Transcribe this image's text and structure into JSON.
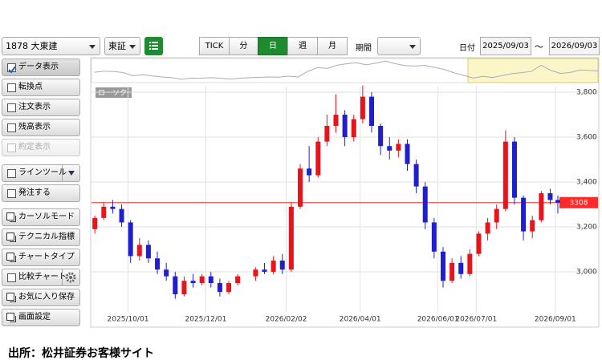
{
  "toolbar": {
    "stock": "1878 大東建",
    "market": "東証",
    "tabs": [
      {
        "label": "TICK",
        "active": false
      },
      {
        "label": "分",
        "active": false
      },
      {
        "label": "日",
        "active": true
      },
      {
        "label": "週",
        "active": false
      },
      {
        "label": "月",
        "active": false
      }
    ],
    "period_label": "期間",
    "date_label": "日付",
    "date_from": "2025/09/03",
    "date_sep": "～",
    "date_to": "2026/09/03"
  },
  "sidebar": [
    {
      "label": "データ表示",
      "kind": "check",
      "checked": true,
      "disabled": false
    },
    {
      "label": "転換点",
      "kind": "check",
      "checked": false,
      "disabled": false
    },
    {
      "label": "注文表示",
      "kind": "check",
      "checked": false,
      "disabled": false
    },
    {
      "label": "残高表示",
      "kind": "check",
      "checked": false,
      "disabled": false
    },
    {
      "label": "約定表示",
      "kind": "check",
      "checked": false,
      "disabled": true
    },
    {
      "label": "ラインツール",
      "kind": "check",
      "checked": false,
      "disabled": false
    },
    {
      "label": "発注する",
      "kind": "check",
      "checked": false,
      "disabled": false
    },
    {
      "label": "カーソルモード",
      "kind": "icon",
      "checked": false,
      "disabled": false
    },
    {
      "label": "テクニカル指標",
      "kind": "icon",
      "checked": false,
      "disabled": false
    },
    {
      "label": "チャートタイプ",
      "kind": "icon",
      "checked": false,
      "disabled": false
    },
    {
      "label": "比較チャート",
      "kind": "check",
      "checked": false,
      "disabled": false
    },
    {
      "label": "お気に入り保存",
      "kind": "icon",
      "checked": false,
      "disabled": false
    },
    {
      "label": "画面設定",
      "kind": "icon",
      "checked": false,
      "disabled": false
    }
  ],
  "chart_data": {
    "type": "candlestick",
    "series_label": "ローソク",
    "up_color": "#e8141c",
    "down_color": "#1f1fd0",
    "last_price": 3308,
    "last_price_color": "#ff2a2a",
    "x": [
      "2025/09/05",
      "2025/09/12",
      "2025/09/19",
      "2025/09/26",
      "2025/10/03",
      "2025/10/10",
      "2025/10/17",
      "2025/10/24",
      "2025/10/31",
      "2025/11/07",
      "2025/11/14",
      "2025/11/21",
      "2025/11/28",
      "2025/12/05",
      "2025/12/12",
      "2025/12/19",
      "2025/12/26",
      "2026/01/09",
      "2026/01/16",
      "2026/01/23",
      "2026/01/30",
      "2026/02/06",
      "2026/02/13",
      "2026/02/20",
      "2026/02/27",
      "2026/03/06",
      "2026/03/13",
      "2026/03/20",
      "2026/03/27",
      "2026/04/03",
      "2026/04/10",
      "2026/04/17",
      "2026/04/24",
      "2026/05/01",
      "2026/05/08",
      "2026/05/15",
      "2026/05/22",
      "2026/05/29",
      "2026/06/05",
      "2026/06/12",
      "2026/06/19",
      "2026/06/26",
      "2026/07/03",
      "2026/07/10",
      "2026/07/17",
      "2026/07/24",
      "2026/07/31",
      "2026/08/07",
      "2026/08/14",
      "2026/08/21",
      "2026/08/28",
      "2026/09/03"
    ],
    "open": [
      3190,
      3240,
      3290,
      3280,
      3220,
      3070,
      3120,
      3060,
      3010,
      2980,
      2900,
      2960,
      2950,
      2980,
      2950,
      2910,
      2950,
      2980,
      3010,
      3000,
      3050,
      3010,
      3290,
      3460,
      3430,
      3580,
      3650,
      3700,
      3600,
      3680,
      3780,
      3650,
      3560,
      3540,
      3570,
      3480,
      3380,
      3220,
      3090,
      2960,
      3040,
      2990,
      3080,
      3170,
      3220,
      3280,
      3580,
      3330,
      3180,
      3230,
      3350,
      3320
    ],
    "high": [
      3250,
      3310,
      3320,
      3300,
      3230,
      3150,
      3140,
      3090,
      3040,
      3000,
      2980,
      2990,
      2990,
      3000,
      2970,
      2960,
      2990,
      3020,
      3040,
      3070,
      3080,
      3310,
      3480,
      3560,
      3600,
      3700,
      3790,
      3720,
      3700,
      3830,
      3800,
      3660,
      3600,
      3590,
      3590,
      3500,
      3400,
      3240,
      3110,
      3060,
      3070,
      3100,
      3180,
      3240,
      3300,
      3630,
      3600,
      3340,
      3250,
      3360,
      3370,
      3340
    ],
    "low": [
      3170,
      3230,
      3260,
      3200,
      3040,
      3050,
      3040,
      2990,
      2960,
      2880,
      2890,
      2930,
      2940,
      2930,
      2890,
      2900,
      2940,
      2960,
      2990,
      2990,
      2990,
      3000,
      3280,
      3400,
      3420,
      3560,
      3620,
      3560,
      3580,
      3660,
      3620,
      3520,
      3500,
      3510,
      3450,
      3350,
      3190,
      3060,
      2930,
      2950,
      2970,
      2980,
      3070,
      3140,
      3190,
      3270,
      3300,
      3140,
      3150,
      3220,
      3300,
      3260
    ],
    "close": [
      3240,
      3290,
      3280,
      3220,
      3070,
      3120,
      3060,
      3010,
      2980,
      2900,
      2960,
      2950,
      2980,
      2950,
      2910,
      2950,
      2980,
      3010,
      3000,
      3050,
      3010,
      3290,
      3460,
      3430,
      3580,
      3650,
      3700,
      3600,
      3680,
      3780,
      3650,
      3560,
      3540,
      3570,
      3480,
      3380,
      3220,
      3090,
      2960,
      3040,
      2990,
      3080,
      3170,
      3220,
      3280,
      3580,
      3330,
      3180,
      3230,
      3350,
      3320,
      3308
    ],
    "xlim": [
      "2025/09/03",
      "2026/09/03"
    ],
    "xticks": [
      "2025/10/01",
      "2025/12/01",
      "2026/02/02",
      "2026/04/01",
      "2026/06/01",
      "2026/07/01",
      "2026/09/01"
    ],
    "ylim": [
      2818,
      3825
    ],
    "yticks": [
      {
        "value": 3000,
        "label": "3,000"
      },
      {
        "value": 3200,
        "label": "3,200"
      },
      {
        "value": 3400,
        "label": "3,400"
      },
      {
        "value": 3600,
        "label": "3,600"
      },
      {
        "value": 3800,
        "label": "3,800"
      }
    ],
    "grid": true
  },
  "footer": "出所：松井証券お客様サイト"
}
